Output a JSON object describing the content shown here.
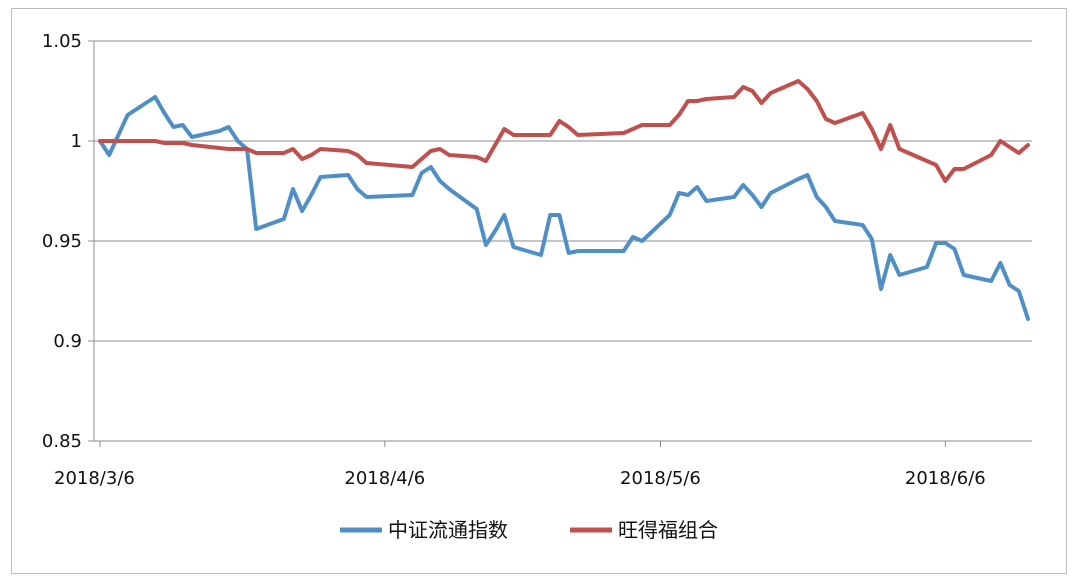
{
  "chart_data": {
    "type": "line",
    "ylim": [
      0.85,
      1.05
    ],
    "yticks": [
      "1.05",
      "1",
      "0.95",
      "0.9",
      "0.85"
    ],
    "ytick_values": [
      1.05,
      1.0,
      0.95,
      0.9,
      0.85
    ],
    "xtick_labels": [
      "2018/3/6",
      "2018/4/6",
      "2018/5/6",
      "2018/6/6"
    ],
    "xtick_dates": [
      "2018-03-06",
      "2018-04-06",
      "2018-05-06",
      "2018-06-06"
    ],
    "grid": true,
    "legend_position": "bottom",
    "series": [
      {
        "name": "中证流通指数",
        "color": "#4f8fc6",
        "points": [
          [
            "2018-03-06",
            1.0
          ],
          [
            "2018-03-07",
            0.993
          ],
          [
            "2018-03-08",
            1.003
          ],
          [
            "2018-03-09",
            1.013
          ],
          [
            "2018-03-12",
            1.022
          ],
          [
            "2018-03-13",
            1.014
          ],
          [
            "2018-03-14",
            1.007
          ],
          [
            "2018-03-15",
            1.008
          ],
          [
            "2018-03-16",
            1.002
          ],
          [
            "2018-03-19",
            1.005
          ],
          [
            "2018-03-20",
            1.007
          ],
          [
            "2018-03-21",
            1.0
          ],
          [
            "2018-03-22",
            0.996
          ],
          [
            "2018-03-23",
            0.956
          ],
          [
            "2018-03-26",
            0.961
          ],
          [
            "2018-03-27",
            0.976
          ],
          [
            "2018-03-28",
            0.965
          ],
          [
            "2018-03-29",
            0.973
          ],
          [
            "2018-03-30",
            0.982
          ],
          [
            "2018-04-02",
            0.983
          ],
          [
            "2018-04-03",
            0.976
          ],
          [
            "2018-04-04",
            0.972
          ],
          [
            "2018-04-09",
            0.973
          ],
          [
            "2018-04-10",
            0.984
          ],
          [
            "2018-04-11",
            0.987
          ],
          [
            "2018-04-12",
            0.98
          ],
          [
            "2018-04-13",
            0.976
          ],
          [
            "2018-04-16",
            0.966
          ],
          [
            "2018-04-17",
            0.948
          ],
          [
            "2018-04-18",
            0.955
          ],
          [
            "2018-04-19",
            0.963
          ],
          [
            "2018-04-20",
            0.947
          ],
          [
            "2018-04-23",
            0.943
          ],
          [
            "2018-04-24",
            0.963
          ],
          [
            "2018-04-25",
            0.963
          ],
          [
            "2018-04-26",
            0.944
          ],
          [
            "2018-04-27",
            0.945
          ],
          [
            "2018-05-02",
            0.945
          ],
          [
            "2018-05-03",
            0.952
          ],
          [
            "2018-05-04",
            0.95
          ],
          [
            "2018-05-07",
            0.963
          ],
          [
            "2018-05-08",
            0.974
          ],
          [
            "2018-05-09",
            0.973
          ],
          [
            "2018-05-10",
            0.977
          ],
          [
            "2018-05-11",
            0.97
          ],
          [
            "2018-05-14",
            0.972
          ],
          [
            "2018-05-15",
            0.978
          ],
          [
            "2018-05-16",
            0.973
          ],
          [
            "2018-05-17",
            0.967
          ],
          [
            "2018-05-18",
            0.974
          ],
          [
            "2018-05-21",
            0.981
          ],
          [
            "2018-05-22",
            0.983
          ],
          [
            "2018-05-23",
            0.972
          ],
          [
            "2018-05-24",
            0.967
          ],
          [
            "2018-05-25",
            0.96
          ],
          [
            "2018-05-28",
            0.958
          ],
          [
            "2018-05-29",
            0.951
          ],
          [
            "2018-05-30",
            0.926
          ],
          [
            "2018-05-31",
            0.943
          ],
          [
            "2018-06-01",
            0.933
          ],
          [
            "2018-06-04",
            0.937
          ],
          [
            "2018-06-05",
            0.949
          ],
          [
            "2018-06-06",
            0.949
          ],
          [
            "2018-06-07",
            0.946
          ],
          [
            "2018-06-08",
            0.933
          ],
          [
            "2018-06-11",
            0.93
          ],
          [
            "2018-06-12",
            0.939
          ],
          [
            "2018-06-13",
            0.928
          ],
          [
            "2018-06-14",
            0.925
          ],
          [
            "2018-06-15",
            0.911
          ]
        ]
      },
      {
        "name": "旺得福组合",
        "color": "#c0504d",
        "points": [
          [
            "2018-03-06",
            1.0
          ],
          [
            "2018-03-09",
            1.0
          ],
          [
            "2018-03-12",
            1.0
          ],
          [
            "2018-03-13",
            0.999
          ],
          [
            "2018-03-15",
            0.999
          ],
          [
            "2018-03-16",
            0.998
          ],
          [
            "2018-03-20",
            0.996
          ],
          [
            "2018-03-22",
            0.996
          ],
          [
            "2018-03-23",
            0.994
          ],
          [
            "2018-03-26",
            0.994
          ],
          [
            "2018-03-27",
            0.996
          ],
          [
            "2018-03-28",
            0.991
          ],
          [
            "2018-03-29",
            0.993
          ],
          [
            "2018-03-30",
            0.996
          ],
          [
            "2018-04-02",
            0.995
          ],
          [
            "2018-04-03",
            0.993
          ],
          [
            "2018-04-04",
            0.989
          ],
          [
            "2018-04-09",
            0.987
          ],
          [
            "2018-04-10",
            0.991
          ],
          [
            "2018-04-11",
            0.995
          ],
          [
            "2018-04-12",
            0.996
          ],
          [
            "2018-04-13",
            0.993
          ],
          [
            "2018-04-16",
            0.992
          ],
          [
            "2018-04-17",
            0.99
          ],
          [
            "2018-04-19",
            1.006
          ],
          [
            "2018-04-20",
            1.003
          ],
          [
            "2018-04-23",
            1.003
          ],
          [
            "2018-04-24",
            1.003
          ],
          [
            "2018-04-25",
            1.01
          ],
          [
            "2018-04-26",
            1.007
          ],
          [
            "2018-04-27",
            1.003
          ],
          [
            "2018-05-02",
            1.004
          ],
          [
            "2018-05-03",
            1.006
          ],
          [
            "2018-05-04",
            1.008
          ],
          [
            "2018-05-07",
            1.008
          ],
          [
            "2018-05-08",
            1.013
          ],
          [
            "2018-05-09",
            1.02
          ],
          [
            "2018-05-10",
            1.02
          ],
          [
            "2018-05-11",
            1.021
          ],
          [
            "2018-05-14",
            1.022
          ],
          [
            "2018-05-15",
            1.027
          ],
          [
            "2018-05-16",
            1.025
          ],
          [
            "2018-05-17",
            1.019
          ],
          [
            "2018-05-18",
            1.024
          ],
          [
            "2018-05-21",
            1.03
          ],
          [
            "2018-05-22",
            1.026
          ],
          [
            "2018-05-23",
            1.02
          ],
          [
            "2018-05-24",
            1.011
          ],
          [
            "2018-05-25",
            1.009
          ],
          [
            "2018-05-28",
            1.014
          ],
          [
            "2018-05-29",
            1.006
          ],
          [
            "2018-05-30",
            0.996
          ],
          [
            "2018-05-31",
            1.008
          ],
          [
            "2018-06-01",
            0.996
          ],
          [
            "2018-06-04",
            0.99
          ],
          [
            "2018-06-05",
            0.988
          ],
          [
            "2018-06-06",
            0.98
          ],
          [
            "2018-06-07",
            0.986
          ],
          [
            "2018-06-08",
            0.986
          ],
          [
            "2018-06-11",
            0.993
          ],
          [
            "2018-06-12",
            1.0
          ],
          [
            "2018-06-13",
            0.997
          ],
          [
            "2018-06-14",
            0.994
          ],
          [
            "2018-06-15",
            0.998
          ]
        ]
      }
    ]
  }
}
